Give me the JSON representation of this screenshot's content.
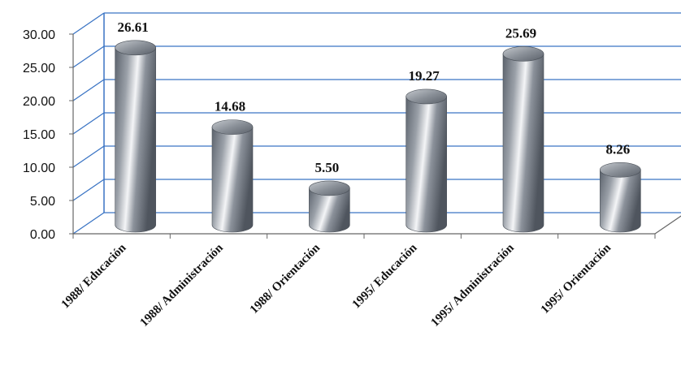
{
  "chart_data": {
    "type": "bar",
    "style": "3d-cylinder",
    "categories": [
      "1988/ Educación",
      "1988/ Administración",
      "1988/ Orientación",
      "1995/ Educación",
      "1995/ Administración",
      "1995/ Orientación"
    ],
    "values": [
      26.61,
      14.68,
      5.5,
      19.27,
      25.69,
      8.26
    ],
    "value_labels": [
      "26.61",
      "14.68",
      "5.50",
      "19.27",
      "25.69",
      "8.26"
    ],
    "yticks": [
      "0.00",
      "5.00",
      "10.00",
      "15.00",
      "20.00",
      "25.00",
      "30.00"
    ],
    "ylim": [
      0,
      30
    ],
    "grid": true,
    "legend": "none",
    "colors": {
      "bar_dark": "#5f6670",
      "bar_light": "#f4f5f7",
      "grid": "#3a74c4",
      "axis": "#666666"
    }
  }
}
